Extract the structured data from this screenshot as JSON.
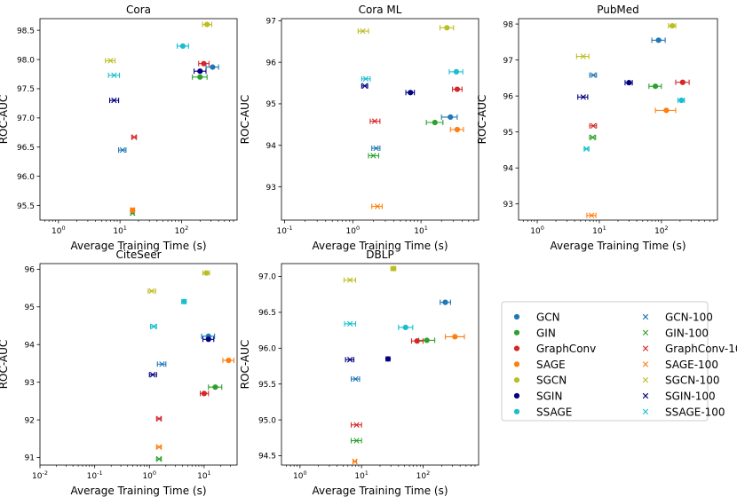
{
  "figure": {
    "xlabel": "Average Training Time (s)",
    "ylabel": "ROC-AUC"
  },
  "legend": [
    {
      "name": "GCN",
      "marker": "o",
      "color": "#1f77b4"
    },
    {
      "name": "GCN-100",
      "marker": "x",
      "color": "#1f77b4"
    },
    {
      "name": "GIN",
      "marker": "o",
      "color": "#2ca02c"
    },
    {
      "name": "GIN-100",
      "marker": "x",
      "color": "#2ca02c"
    },
    {
      "name": "GraphConv",
      "marker": "o",
      "color": "#d62728"
    },
    {
      "name": "GraphConv-100",
      "marker": "x",
      "color": "#d62728"
    },
    {
      "name": "SAGE",
      "marker": "o",
      "color": "#ff7f0e"
    },
    {
      "name": "SAGE-100",
      "marker": "x",
      "color": "#ff7f0e"
    },
    {
      "name": "SGCN",
      "marker": "o",
      "color": "#bcbd22"
    },
    {
      "name": "SGCN-100",
      "marker": "x",
      "color": "#bcbd22"
    },
    {
      "name": "SGIN",
      "marker": "o",
      "color": "#000080"
    },
    {
      "name": "SGIN-100",
      "marker": "x",
      "color": "#000080"
    },
    {
      "name": "SSAGE",
      "marker": "o",
      "color": "#17becf"
    },
    {
      "name": "SSAGE-100",
      "marker": "x",
      "color": "#17becf"
    }
  ],
  "chart_data": [
    {
      "type": "scatter",
      "title": "Cora",
      "xscale": "log",
      "xlabel": "Average Training Time (s)",
      "ylabel": "ROC-AUC",
      "xlim": [
        0.5,
        800
      ],
      "ylim": [
        95.25,
        98.7
      ],
      "xticks": [
        {
          "v": 1,
          "label": "10^0"
        },
        {
          "v": 10,
          "label": "10^1"
        },
        {
          "v": 100,
          "label": "10^2"
        }
      ],
      "yticks": [
        95.5,
        96.0,
        96.5,
        97.0,
        97.5,
        98.0,
        98.5
      ],
      "points": [
        {
          "series": "GCN",
          "x": 320,
          "y": 97.87,
          "xerr": [
            250,
            400
          ]
        },
        {
          "series": "GCN-100",
          "x": 11,
          "y": 96.45,
          "xerr": [
            9.5,
            12.5
          ]
        },
        {
          "series": "GIN",
          "x": 200,
          "y": 97.7,
          "xerr": [
            150,
            260
          ]
        },
        {
          "series": "GIN-100",
          "x": 16,
          "y": 95.37,
          "xerr": [
            15,
            17
          ]
        },
        {
          "series": "GraphConv",
          "x": 230,
          "y": 97.93,
          "xerr": [
            190,
            280
          ]
        },
        {
          "series": "GraphConv-100",
          "x": 17,
          "y": 96.67,
          "xerr": [
            15.5,
            18.5
          ]
        },
        {
          "series": "SAGE",
          "x": 16,
          "y": 95.42,
          "xerr": [
            15,
            17
          ]
        },
        {
          "series": "SAGE-100",
          "x": 16,
          "y": 95.42,
          "xerr": [
            15,
            17
          ]
        },
        {
          "series": "SGCN",
          "x": 260,
          "y": 98.6,
          "xerr": [
            220,
            310
          ]
        },
        {
          "series": "SGCN-100",
          "x": 7,
          "y": 97.98,
          "xerr": [
            5.8,
            8.3
          ]
        },
        {
          "series": "SGIN",
          "x": 200,
          "y": 97.8,
          "xerr": [
            160,
            250
          ]
        },
        {
          "series": "SGIN-100",
          "x": 8,
          "y": 97.3,
          "xerr": [
            6.8,
            9.5
          ]
        },
        {
          "series": "SSAGE",
          "x": 105,
          "y": 98.23,
          "xerr": [
            85,
            130
          ]
        },
        {
          "series": "SSAGE-100",
          "x": 8,
          "y": 97.73,
          "xerr": [
            6.5,
            9.8
          ]
        }
      ]
    },
    {
      "type": "scatter",
      "title": "Cora ML",
      "xscale": "log",
      "xlabel": "Average Training Time (s)",
      "ylabel": "ROC-AUC",
      "xlim": [
        0.09,
        70
      ],
      "ylim": [
        92.2,
        97.05
      ],
      "xticks": [
        {
          "v": 0.1,
          "label": "10^-1"
        },
        {
          "v": 1,
          "label": "10^0"
        },
        {
          "v": 10,
          "label": "10^1"
        }
      ],
      "yticks": [
        93,
        94,
        95,
        96,
        97
      ],
      "points": [
        {
          "series": "GCN",
          "x": 27,
          "y": 94.68,
          "xerr": [
            20,
            34
          ]
        },
        {
          "series": "GCN-100",
          "x": 2.2,
          "y": 93.93,
          "xerr": [
            1.9,
            2.5
          ]
        },
        {
          "series": "GIN",
          "x": 16,
          "y": 94.55,
          "xerr": [
            12,
            21
          ]
        },
        {
          "series": "GIN-100",
          "x": 2,
          "y": 93.75,
          "xerr": [
            1.7,
            2.4
          ]
        },
        {
          "series": "GraphConv",
          "x": 34,
          "y": 95.35,
          "xerr": [
            29,
            40
          ]
        },
        {
          "series": "GraphConv-100",
          "x": 2.1,
          "y": 94.58,
          "xerr": [
            1.8,
            2.5
          ]
        },
        {
          "series": "SAGE",
          "x": 34,
          "y": 94.38,
          "xerr": [
            27,
            42
          ]
        },
        {
          "series": "SAGE-100",
          "x": 2.3,
          "y": 92.53,
          "xerr": [
            1.9,
            2.7
          ]
        },
        {
          "series": "SGCN",
          "x": 24,
          "y": 96.83,
          "xerr": [
            19,
            30
          ]
        },
        {
          "series": "SGCN-100",
          "x": 1.4,
          "y": 96.75,
          "xerr": [
            1.2,
            1.7
          ]
        },
        {
          "series": "SGIN",
          "x": 7,
          "y": 95.27,
          "xerr": [
            6,
            8
          ]
        },
        {
          "series": "SGIN-100",
          "x": 1.5,
          "y": 95.43,
          "xerr": [
            1.35,
            1.65
          ]
        },
        {
          "series": "SSAGE",
          "x": 33,
          "y": 95.77,
          "xerr": [
            26,
            41
          ]
        },
        {
          "series": "SSAGE-100",
          "x": 1.55,
          "y": 95.6,
          "xerr": [
            1.35,
            1.8
          ]
        }
      ]
    },
    {
      "type": "scatter",
      "title": "PubMed",
      "xscale": "log",
      "xlabel": "Average Training Time (s)",
      "ylabel": "ROC-AUC",
      "xlim": [
        0.5,
        800
      ],
      "ylim": [
        92.55,
        98.15
      ],
      "xticks": [
        {
          "v": 1,
          "label": "10^0"
        },
        {
          "v": 10,
          "label": "10^1"
        },
        {
          "v": 100,
          "label": "10^2"
        }
      ],
      "yticks": [
        93,
        94,
        95,
        96,
        97,
        98
      ],
      "points": [
        {
          "series": "GCN",
          "x": 90,
          "y": 97.55,
          "xerr": [
            70,
            115
          ]
        },
        {
          "series": "GCN-100",
          "x": 8,
          "y": 96.58,
          "xerr": [
            7,
            9
          ]
        },
        {
          "series": "GIN",
          "x": 80,
          "y": 96.27,
          "xerr": [
            63,
            100
          ]
        },
        {
          "series": "GIN-100",
          "x": 7.8,
          "y": 94.85,
          "xerr": [
            7,
            8.7
          ]
        },
        {
          "series": "GraphConv",
          "x": 220,
          "y": 96.38,
          "xerr": [
            170,
            280
          ]
        },
        {
          "series": "GraphConv-100",
          "x": 8,
          "y": 95.17,
          "xerr": [
            7,
            9
          ]
        },
        {
          "series": "SAGE",
          "x": 120,
          "y": 95.6,
          "xerr": [
            80,
            170
          ]
        },
        {
          "series": "SAGE-100",
          "x": 7.5,
          "y": 92.68,
          "xerr": [
            6.3,
            8.8
          ]
        },
        {
          "series": "SGCN",
          "x": 150,
          "y": 97.95,
          "xerr": [
            130,
            170
          ]
        },
        {
          "series": "SGCN-100",
          "x": 5.5,
          "y": 97.1,
          "xerr": [
            4.3,
            6.8
          ]
        },
        {
          "series": "SGIN",
          "x": 30,
          "y": 96.37,
          "xerr": [
            26,
            34
          ]
        },
        {
          "series": "SGIN-100",
          "x": 5.5,
          "y": 95.97,
          "xerr": [
            4.5,
            6.5
          ]
        },
        {
          "series": "SSAGE",
          "x": 210,
          "y": 95.88,
          "xerr": [
            185,
            235
          ]
        },
        {
          "series": "SSAGE-100",
          "x": 6.2,
          "y": 94.53,
          "xerr": [
            5.7,
            6.8
          ]
        }
      ]
    },
    {
      "type": "scatter",
      "title": "CiteSeer",
      "xscale": "log",
      "xlabel": "Average Training Time (s)",
      "ylabel": "ROC-AUC",
      "xlim": [
        0.01,
        40
      ],
      "ylim": [
        90.8,
        96.15
      ],
      "xticks": [
        {
          "v": 0.01,
          "label": "10^-2"
        },
        {
          "v": 0.1,
          "label": "10^-1"
        },
        {
          "v": 1,
          "label": "10^0"
        },
        {
          "v": 10,
          "label": "10^1"
        }
      ],
      "yticks": [
        91,
        92,
        93,
        94,
        95,
        96
      ],
      "points": [
        {
          "series": "GCN",
          "x": 12,
          "y": 94.22,
          "xerr": [
            9,
            15.5
          ]
        },
        {
          "series": "GCN-100",
          "x": 1.7,
          "y": 93.48,
          "xerr": [
            1.4,
            2.0
          ]
        },
        {
          "series": "GIN",
          "x": 16,
          "y": 92.87,
          "xerr": [
            12,
            21
          ]
        },
        {
          "series": "GIN-100",
          "x": 1.5,
          "y": 90.96,
          "xerr": [
            1.35,
            1.65
          ]
        },
        {
          "series": "GraphConv",
          "x": 10,
          "y": 92.7,
          "xerr": [
            8.5,
            12
          ]
        },
        {
          "series": "GraphConv-100",
          "x": 1.5,
          "y": 92.03,
          "xerr": [
            1.35,
            1.65
          ]
        },
        {
          "series": "SAGE",
          "x": 28,
          "y": 93.58,
          "xerr": [
            22,
            35
          ]
        },
        {
          "series": "SAGE-100",
          "x": 1.5,
          "y": 91.28,
          "xerr": [
            1.35,
            1.65
          ]
        },
        {
          "series": "SGCN",
          "x": 11,
          "y": 95.9,
          "xerr": [
            9.5,
            12.5
          ]
        },
        {
          "series": "SGCN-100",
          "x": 1.1,
          "y": 95.42,
          "xerr": [
            0.95,
            1.3
          ]
        },
        {
          "series": "SGIN",
          "x": 12,
          "y": 94.14,
          "xerr": [
            9.5,
            15
          ]
        },
        {
          "series": "SGIN-100",
          "x": 1.15,
          "y": 93.2,
          "xerr": [
            1.0,
            1.35
          ]
        },
        {
          "series": "SSAGE",
          "x": 4.3,
          "y": 95.14,
          "xerr": [
            3.9,
            4.7
          ]
        },
        {
          "series": "SSAGE-100",
          "x": 1.2,
          "y": 94.48,
          "xerr": [
            1.05,
            1.35
          ]
        }
      ]
    },
    {
      "type": "scatter",
      "title": "DBLP",
      "xscale": "log",
      "xlabel": "Average Training Time (s)",
      "ylabel": "ROC-AUC",
      "xlim": [
        0.5,
        800
      ],
      "ylim": [
        94.37,
        97.18
      ],
      "xticks": [
        {
          "v": 1,
          "label": "10^0"
        },
        {
          "v": 10,
          "label": "10^1"
        },
        {
          "v": 100,
          "label": "10^2"
        }
      ],
      "yticks": [
        94.5,
        95.0,
        95.5,
        96.0,
        96.5,
        97.0
      ],
      "points": [
        {
          "series": "GCN",
          "x": 230,
          "y": 96.64,
          "xerr": [
            190,
            280
          ]
        },
        {
          "series": "GCN-100",
          "x": 8,
          "y": 95.57,
          "xerr": [
            6.8,
            9.3
          ]
        },
        {
          "series": "GIN",
          "x": 115,
          "y": 96.11,
          "xerr": [
            85,
            155
          ]
        },
        {
          "series": "GIN-100",
          "x": 8.3,
          "y": 94.71,
          "xerr": [
            6.8,
            10
          ]
        },
        {
          "series": "GraphConv",
          "x": 80,
          "y": 96.1,
          "xerr": [
            65,
            100
          ]
        },
        {
          "series": "GraphConv-100",
          "x": 8.3,
          "y": 94.93,
          "xerr": [
            6.8,
            10
          ]
        },
        {
          "series": "SAGE",
          "x": 330,
          "y": 96.16,
          "xerr": [
            230,
            470
          ]
        },
        {
          "series": "SAGE-100",
          "x": 7.8,
          "y": 94.42,
          "xerr": [
            7.3,
            8.3
          ]
        },
        {
          "series": "SGCN",
          "x": 33,
          "y": 97.11,
          "xerr": [
            30,
            36
          ]
        },
        {
          "series": "SGCN-100",
          "x": 6.5,
          "y": 96.95,
          "xerr": [
            5.2,
            8
          ]
        },
        {
          "series": "SGIN",
          "x": 27,
          "y": 95.85,
          "xerr": [
            25,
            29
          ]
        },
        {
          "series": "SGIN-100",
          "x": 6.5,
          "y": 95.84,
          "xerr": [
            5.5,
            7.5
          ]
        },
        {
          "series": "SSAGE",
          "x": 52,
          "y": 96.29,
          "xerr": [
            40,
            68
          ]
        },
        {
          "series": "SSAGE-100",
          "x": 6.5,
          "y": 96.34,
          "xerr": [
            5.3,
            8
          ]
        }
      ]
    }
  ]
}
